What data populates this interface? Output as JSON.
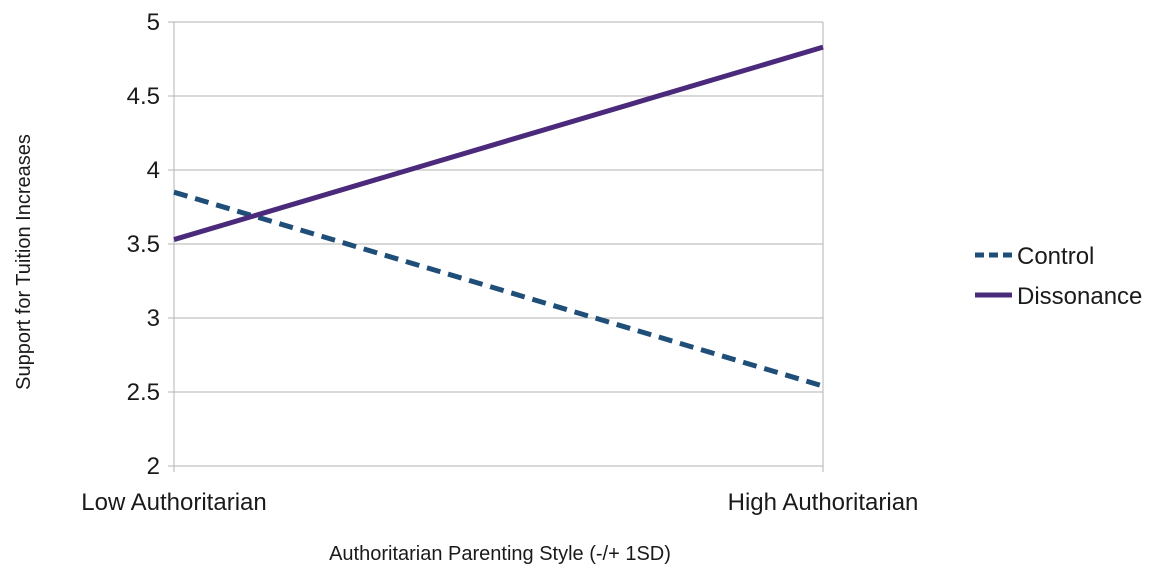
{
  "chart_data": {
    "type": "line",
    "title": "",
    "xlabel": "Authoritarian Parenting Style (-/+ 1SD)",
    "ylabel": "Support for Tuition Increases",
    "categories": [
      "Low Authoritarian",
      "High Authoritarian"
    ],
    "ylim": [
      2,
      5
    ],
    "yticks": [
      "2",
      "2.5",
      "3",
      "3.5",
      "4",
      "4.5",
      "5"
    ],
    "grid": true,
    "legend_position": "right",
    "series": [
      {
        "name": "Control",
        "values": [
          3.85,
          2.54
        ],
        "color": "#1f4e79",
        "style": "dashed"
      },
      {
        "name": "Dissonance",
        "values": [
          3.53,
          4.83
        ],
        "color": "#4b2a7b",
        "style": "solid"
      }
    ]
  }
}
